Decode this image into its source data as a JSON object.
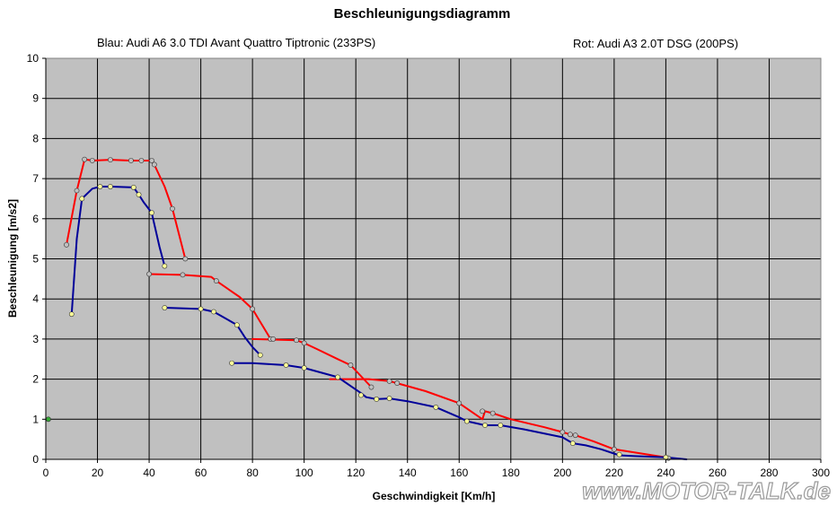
{
  "chart_data": {
    "type": "scatter",
    "title": "Beschleunigungsdiagramm",
    "subtitle_left": "Blau: Audi A6 3.0 TDI Avant Quattro Tiptronic (233PS)",
    "subtitle_right": "Rot: Audi A3 2.0T DSG (200PS)",
    "xlabel": "Geschwindigkeit [Km/h]",
    "ylabel": "Beschleunigung [m/s2]",
    "xlim": [
      0,
      300
    ],
    "ylim": [
      0,
      10
    ],
    "xticks": [
      "0",
      "20",
      "40",
      "60",
      "80",
      "100",
      "120",
      "140",
      "160",
      "180",
      "200",
      "220",
      "240",
      "260",
      "280",
      "300"
    ],
    "yticks": [
      "0",
      "1",
      "2",
      "3",
      "4",
      "5",
      "6",
      "7",
      "8",
      "9",
      "10"
    ],
    "grid": true,
    "plot_background": "#c0c0c0",
    "series": [
      {
        "color": "#ff0000",
        "segments": [
          [
            [
              8,
              5.35
            ],
            [
              12,
              6.7
            ],
            [
              15,
              7.48
            ],
            [
              18,
              7.45
            ],
            [
              25,
              7.47
            ],
            [
              33,
              7.45
            ],
            [
              37,
              7.45
            ],
            [
              41,
              7.45
            ],
            [
              42,
              7.35
            ],
            [
              46,
              6.8
            ],
            [
              49,
              6.25
            ],
            [
              54,
              5.0
            ]
          ],
          [
            [
              40,
              4.62
            ],
            [
              53,
              4.6
            ],
            [
              64,
              4.55
            ],
            [
              66,
              4.45
            ],
            [
              75,
              4.05
            ],
            [
              80,
              3.75
            ],
            [
              87,
              3.0
            ],
            [
              88,
              3.0
            ]
          ],
          [
            [
              80,
              3.0
            ],
            [
              97,
              2.97
            ],
            [
              100,
              2.9
            ],
            [
              105,
              2.75
            ],
            [
              113,
              2.5
            ],
            [
              118,
              2.35
            ],
            [
              126,
              1.8
            ]
          ],
          [
            [
              110,
              2.0
            ],
            [
              125,
              2.0
            ],
            [
              133,
              1.95
            ],
            [
              136,
              1.9
            ],
            [
              147,
              1.7
            ],
            [
              160,
              1.4
            ],
            [
              169,
              1.0
            ],
            [
              170,
              1.2
            ]
          ],
          [
            [
              170,
              1.2
            ],
            [
              173,
              1.15
            ],
            [
              180,
              1.0
            ],
            [
              193,
              0.8
            ],
            [
              200,
              0.68
            ],
            [
              203,
              0.62
            ],
            [
              205,
              0.6
            ],
            [
              212,
              0.45
            ],
            [
              220,
              0.25
            ],
            [
              230,
              0.15
            ],
            [
              242,
              0.03
            ]
          ]
        ]
      },
      {
        "color": "#000099",
        "segments": [
          [
            [
              10,
              3.62
            ],
            [
              12,
              5.5
            ],
            [
              14,
              6.5
            ],
            [
              18,
              6.75
            ],
            [
              21,
              6.8
            ],
            [
              25,
              6.8
            ],
            [
              34,
              6.78
            ],
            [
              36,
              6.6
            ],
            [
              38,
              6.4
            ],
            [
              41,
              6.15
            ],
            [
              44,
              5.3
            ],
            [
              46,
              4.82
            ]
          ],
          [
            [
              46,
              3.78
            ],
            [
              60,
              3.75
            ],
            [
              65,
              3.68
            ],
            [
              70,
              3.5
            ],
            [
              74,
              3.35
            ],
            [
              77,
              3.05
            ],
            [
              80,
              2.8
            ],
            [
              83,
              2.6
            ]
          ],
          [
            [
              72,
              2.4
            ],
            [
              80,
              2.4
            ],
            [
              93,
              2.35
            ],
            [
              100,
              2.28
            ],
            [
              113,
              2.05
            ],
            [
              122,
              1.65
            ],
            [
              124,
              1.55
            ],
            [
              128,
              1.5
            ]
          ],
          [
            [
              128,
              1.5
            ],
            [
              133,
              1.52
            ],
            [
              140,
              1.45
            ],
            [
              151,
              1.3
            ],
            [
              160,
              1.05
            ],
            [
              163,
              0.95
            ],
            [
              170,
              0.85
            ],
            [
              176,
              0.85
            ],
            [
              185,
              0.75
            ],
            [
              200,
              0.55
            ],
            [
              204,
              0.4
            ],
            [
              209,
              0.35
            ],
            [
              215,
              0.25
            ],
            [
              222,
              0.1
            ],
            [
              228,
              0.08
            ],
            [
              240,
              0.05
            ],
            [
              248,
              0.0
            ]
          ]
        ]
      }
    ],
    "points": [
      {
        "x": 8,
        "y": 5.35,
        "fill": "#c0c0c0"
      },
      {
        "x": 12,
        "y": 6.7,
        "fill": "#c0c0c0"
      },
      {
        "x": 15,
        "y": 7.48,
        "fill": "#c0c0c0"
      },
      {
        "x": 18,
        "y": 7.45,
        "fill": "#c0c0c0"
      },
      {
        "x": 25,
        "y": 7.47,
        "fill": "#c0c0c0"
      },
      {
        "x": 33,
        "y": 7.45,
        "fill": "#c0c0c0"
      },
      {
        "x": 37,
        "y": 7.45,
        "fill": "#c0c0c0"
      },
      {
        "x": 41,
        "y": 7.45,
        "fill": "#c0c0c0"
      },
      {
        "x": 42,
        "y": 7.35,
        "fill": "#c0c0c0"
      },
      {
        "x": 49,
        "y": 6.25,
        "fill": "#c0c0c0"
      },
      {
        "x": 54,
        "y": 5.0,
        "fill": "#c0c0c0"
      },
      {
        "x": 40,
        "y": 4.62,
        "fill": "#c0c0c0"
      },
      {
        "x": 53,
        "y": 4.6,
        "fill": "#c0c0c0"
      },
      {
        "x": 66,
        "y": 4.45,
        "fill": "#c0c0c0"
      },
      {
        "x": 80,
        "y": 3.75,
        "fill": "#c0c0c0"
      },
      {
        "x": 87,
        "y": 3.0,
        "fill": "#c0c0c0"
      },
      {
        "x": 88,
        "y": 3.0,
        "fill": "#c0c0c0"
      },
      {
        "x": 97,
        "y": 2.97,
        "fill": "#c0c0c0"
      },
      {
        "x": 100,
        "y": 2.9,
        "fill": "#c0c0c0"
      },
      {
        "x": 118,
        "y": 2.35,
        "fill": "#c0c0c0"
      },
      {
        "x": 126,
        "y": 1.8,
        "fill": "#c0c0c0"
      },
      {
        "x": 133,
        "y": 1.95,
        "fill": "#c0c0c0"
      },
      {
        "x": 136,
        "y": 1.9,
        "fill": "#c0c0c0"
      },
      {
        "x": 160,
        "y": 1.4,
        "fill": "#c0c0c0"
      },
      {
        "x": 169,
        "y": 1.2,
        "fill": "#c0c0c0"
      },
      {
        "x": 173,
        "y": 1.15,
        "fill": "#c0c0c0"
      },
      {
        "x": 200,
        "y": 0.68,
        "fill": "#c0c0c0"
      },
      {
        "x": 203,
        "y": 0.62,
        "fill": "#c0c0c0"
      },
      {
        "x": 205,
        "y": 0.6,
        "fill": "#c0c0c0"
      },
      {
        "x": 220,
        "y": 0.25,
        "fill": "#c0c0c0"
      },
      {
        "x": 241,
        "y": 0.03,
        "fill": "#c0c0c0"
      },
      {
        "x": 10,
        "y": 3.62,
        "fill": "#ffff99"
      },
      {
        "x": 14,
        "y": 6.5,
        "fill": "#ffff99"
      },
      {
        "x": 21,
        "y": 6.8,
        "fill": "#ffff99"
      },
      {
        "x": 25,
        "y": 6.8,
        "fill": "#ffff99"
      },
      {
        "x": 34,
        "y": 6.78,
        "fill": "#ffff99"
      },
      {
        "x": 36,
        "y": 6.6,
        "fill": "#ffff99"
      },
      {
        "x": 41,
        "y": 6.15,
        "fill": "#ffff99"
      },
      {
        "x": 46,
        "y": 4.82,
        "fill": "#ffff99"
      },
      {
        "x": 46,
        "y": 3.78,
        "fill": "#ffff99"
      },
      {
        "x": 60,
        "y": 3.75,
        "fill": "#ffff99"
      },
      {
        "x": 65,
        "y": 3.68,
        "fill": "#ffff99"
      },
      {
        "x": 74,
        "y": 3.35,
        "fill": "#ffff99"
      },
      {
        "x": 83,
        "y": 2.6,
        "fill": "#ffff99"
      },
      {
        "x": 72,
        "y": 2.4,
        "fill": "#ffff99"
      },
      {
        "x": 93,
        "y": 2.35,
        "fill": "#ffff99"
      },
      {
        "x": 100,
        "y": 2.28,
        "fill": "#ffff99"
      },
      {
        "x": 113,
        "y": 2.05,
        "fill": "#ffff99"
      },
      {
        "x": 122,
        "y": 1.6,
        "fill": "#ffff99"
      },
      {
        "x": 128,
        "y": 1.5,
        "fill": "#ffff99"
      },
      {
        "x": 133,
        "y": 1.52,
        "fill": "#ffff99"
      },
      {
        "x": 151,
        "y": 1.3,
        "fill": "#ffff99"
      },
      {
        "x": 163,
        "y": 0.95,
        "fill": "#ffff99"
      },
      {
        "x": 170,
        "y": 0.85,
        "fill": "#ffff99"
      },
      {
        "x": 176,
        "y": 0.85,
        "fill": "#ffff99"
      },
      {
        "x": 204,
        "y": 0.4,
        "fill": "#ffff99"
      },
      {
        "x": 222,
        "y": 0.12,
        "fill": "#ffff99"
      },
      {
        "x": 240,
        "y": 0.05,
        "fill": "#ffff99"
      },
      {
        "x": 1,
        "y": 1.0,
        "fill": "#33aa33"
      }
    ]
  },
  "watermark": "www.MOTOR-TALK.de"
}
